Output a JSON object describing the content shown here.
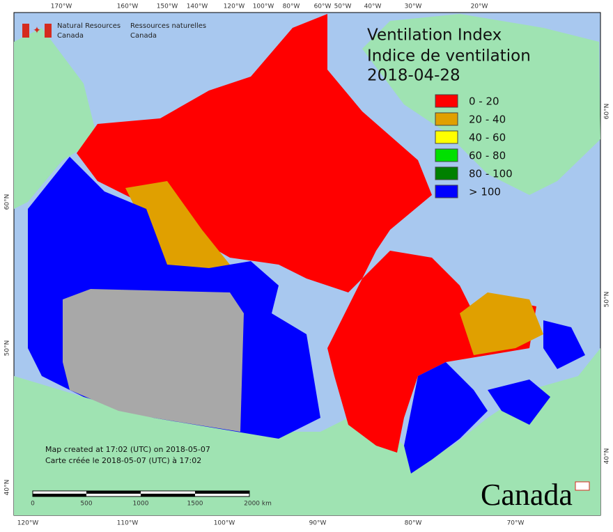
{
  "header": {
    "agency_en": [
      "Natural Resources",
      "Canada"
    ],
    "agency_fr": [
      "Ressources naturelles",
      "Canada"
    ]
  },
  "title": [
    "Ventilation Index",
    "Indice de ventilation",
    "2018-04-28"
  ],
  "legend": [
    {
      "label": "0 - 20",
      "color": "#ff0000"
    },
    {
      "label": "20 - 40",
      "color": "#e0a000"
    },
    {
      "label": "40 - 60",
      "color": "#ffff00"
    },
    {
      "label": "60 - 80",
      "color": "#00e000"
    },
    {
      "label": "80 - 100",
      "color": "#008000"
    },
    {
      "label": "> 100",
      "color": "#0000ff"
    }
  ],
  "graticule": {
    "top": [
      "170°W",
      "160°W",
      "150°W",
      "140°W",
      "120°W",
      "100°W",
      "80°W",
      "60°W",
      "50°W",
      "40°W",
      "30°W",
      "20°W"
    ],
    "bottom": [
      "120°W",
      "110°W",
      "100°W",
      "90°W",
      "80°W",
      "70°W"
    ],
    "left": [
      "60°N",
      "50°N",
      "40°N"
    ],
    "right": [
      "60°N",
      "50°N",
      "40°N"
    ]
  },
  "scale_bar": [
    "0",
    "500",
    "1000",
    "1500",
    "2000 km"
  ],
  "footer": [
    "Map created at 17:02 (UTC) on 2018-05-07",
    "Carte créée le 2018-05-07 (UTC) à 17:02"
  ],
  "wordmark": "Canada"
}
